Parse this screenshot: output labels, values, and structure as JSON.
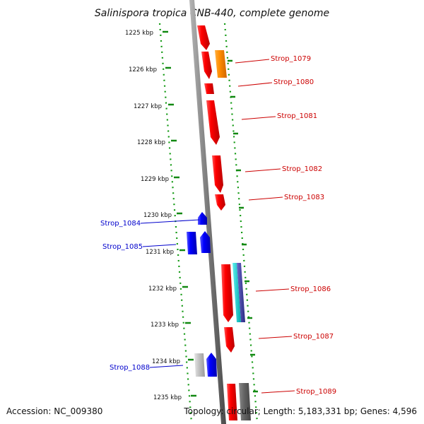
{
  "title": "Salinispora tropica CNB-440, complete genome",
  "accession": "Accession: NC_009380",
  "summary": "Topology: circular; Length: 5,183,331 bp; Genes: 4,596",
  "colors": {
    "backbone": "#7a7a7a",
    "ruler": "#118811",
    "forward_label": "#cc0000",
    "reverse_label": "#0000cc"
  },
  "ticks": [
    {
      "kbp": 1225,
      "label": "1225 kbp"
    },
    {
      "kbp": 1226,
      "label": "1226 kbp"
    },
    {
      "kbp": 1227,
      "label": "1227 kbp"
    },
    {
      "kbp": 1228,
      "label": "1228 kbp"
    },
    {
      "kbp": 1229,
      "label": "1229 kbp"
    },
    {
      "kbp": 1230,
      "label": "1230 kbp"
    },
    {
      "kbp": 1231,
      "label": "1231 kbp"
    },
    {
      "kbp": 1232,
      "label": "1232 kbp"
    },
    {
      "kbp": 1233,
      "label": "1233 kbp"
    },
    {
      "kbp": 1234,
      "label": "1234 kbp"
    },
    {
      "kbp": 1235,
      "label": "1235 kbp"
    }
  ],
  "genes": [
    {
      "name": "Strop_1079",
      "color": "#ff8c00"
    },
    {
      "name": "Strop_1080",
      "color": "#ee0000"
    },
    {
      "name": "Strop_1081",
      "color": "#ee0000"
    },
    {
      "name": "Strop_1082",
      "color": "#ee0000"
    },
    {
      "name": "Strop_1083",
      "color": "#ee0000"
    },
    {
      "name": "Strop_1084",
      "color": "#0000ee"
    },
    {
      "name": "Strop_1085",
      "color": "#0000ee"
    },
    {
      "name": "Strop_1086",
      "color": "#ee0000"
    },
    {
      "name": "Strop_1087",
      "color": "#ee0000"
    },
    {
      "name": "Strop_1088",
      "color": "#0000ee"
    },
    {
      "name": "Strop_1089",
      "color": "#ee0000"
    }
  ]
}
